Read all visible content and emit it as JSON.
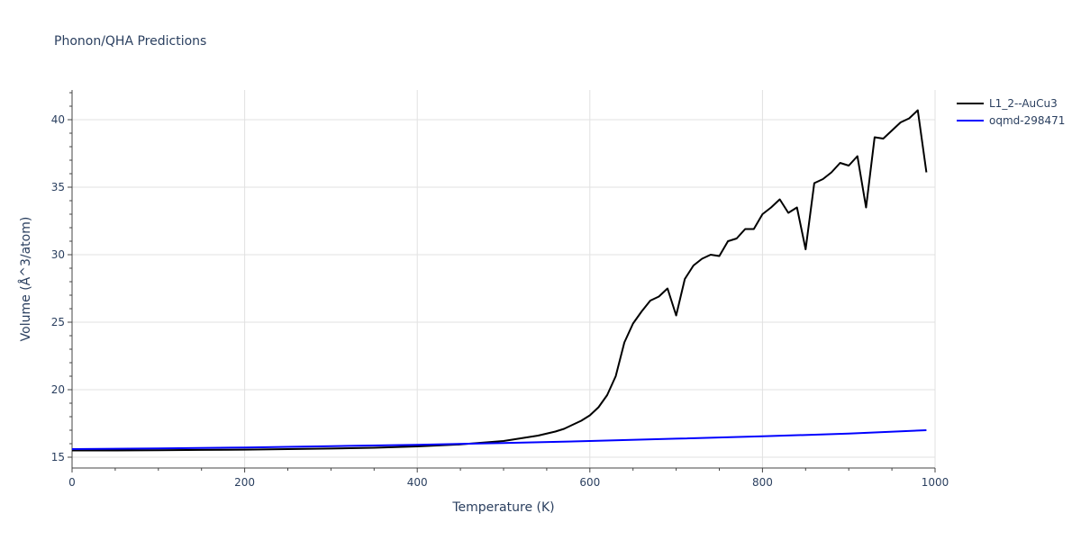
{
  "chart_data": {
    "type": "line",
    "title": "Phonon/QHA Predictions",
    "xlabel": "Temperature (K)",
    "ylabel": "Volume (Å^3/atom)",
    "xlim": [
      0,
      1000
    ],
    "ylim": [
      14.2,
      42.2
    ],
    "xticks": [
      0,
      200,
      400,
      600,
      800,
      1000
    ],
    "yticks": [
      15,
      20,
      25,
      30,
      35,
      40
    ],
    "grid": true,
    "legend_position": "top-right",
    "series": [
      {
        "name": "L1_2--AuCu3",
        "color": "#000000",
        "x": [
          0,
          50,
          100,
          150,
          200,
          250,
          300,
          350,
          400,
          450,
          500,
          520,
          540,
          560,
          570,
          580,
          590,
          600,
          610,
          620,
          630,
          640,
          650,
          660,
          670,
          680,
          690,
          700,
          710,
          720,
          730,
          740,
          750,
          760,
          770,
          780,
          790,
          800,
          810,
          820,
          830,
          840,
          850,
          860,
          870,
          880,
          890,
          900,
          910,
          920,
          930,
          940,
          950,
          960,
          970,
          980,
          990
        ],
        "y": [
          15.5,
          15.5,
          15.52,
          15.54,
          15.56,
          15.6,
          15.64,
          15.7,
          15.8,
          15.95,
          16.2,
          16.4,
          16.6,
          16.9,
          17.1,
          17.4,
          17.7,
          18.1,
          18.7,
          19.6,
          21.0,
          23.5,
          24.9,
          25.8,
          26.6,
          26.9,
          27.5,
          25.5,
          28.2,
          29.2,
          29.7,
          30.0,
          29.9,
          31.0,
          31.2,
          31.9,
          31.9,
          33.0,
          33.5,
          34.1,
          33.1,
          33.5,
          30.4,
          35.3,
          35.6,
          36.1,
          36.8,
          36.6,
          37.3,
          33.5,
          38.7,
          38.6,
          39.2,
          39.8,
          40.1,
          40.7,
          36.1
        ]
      },
      {
        "name": "oqmd-298471",
        "color": "#0000ff",
        "x": [
          0,
          100,
          200,
          300,
          400,
          500,
          600,
          700,
          800,
          900,
          990
        ],
        "y": [
          15.6,
          15.65,
          15.72,
          15.82,
          15.92,
          16.05,
          16.2,
          16.37,
          16.55,
          16.75,
          17.0
        ]
      }
    ]
  }
}
